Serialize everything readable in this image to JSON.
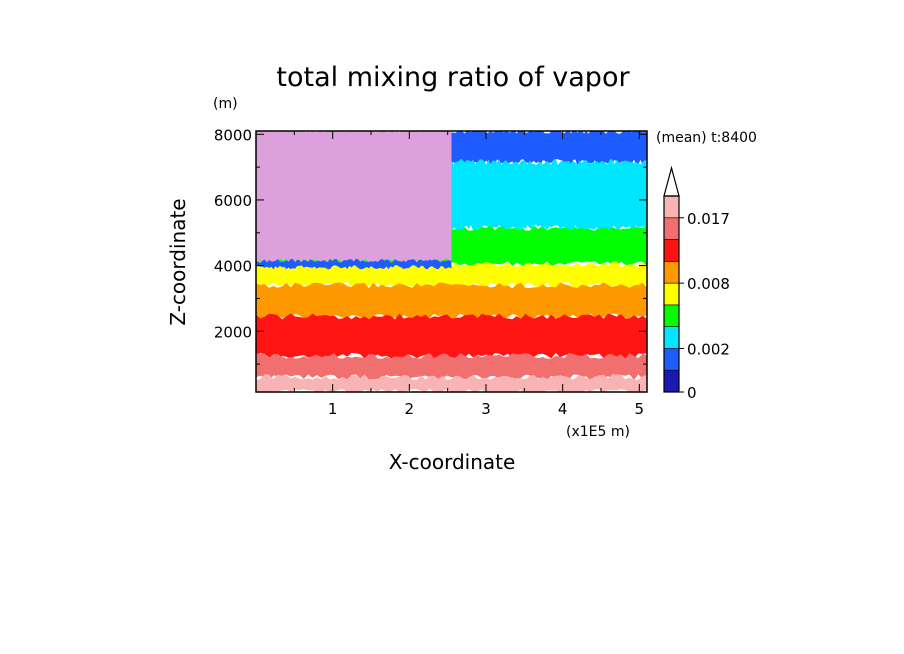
{
  "chart_data": {
    "type": "heatmap",
    "subtype": "filled-contour",
    "title": "total mixing ratio of vapor",
    "xlabel": "X-coordinate",
    "ylabel": "Z-coordinate",
    "x_units": "(x1E5 m)",
    "y_units": "(m)",
    "x_range": [
      0.0,
      5.1
    ],
    "y_range": [
      150,
      8100
    ],
    "x_ticks": [
      "1",
      "2",
      "3",
      "4",
      "5"
    ],
    "y_ticks": [
      "2000",
      "4000",
      "6000",
      "8000"
    ],
    "x_tick_values": [
      1,
      2,
      3,
      4,
      5
    ],
    "y_tick_values": [
      2000,
      4000,
      6000,
      8000
    ],
    "annotation": "(mean) t:8400",
    "colorbar": {
      "levels": [
        0,
        0.0005,
        0.002,
        0.004,
        0.006,
        0.008,
        0.01,
        0.013,
        0.017,
        0.022
      ],
      "colors": [
        "#1a1ab0",
        "#1e5cff",
        "#00e6ff",
        "#00ff00",
        "#ffff00",
        "#ff9900",
        "#ff1414",
        "#f07070",
        "#f8b4b4"
      ],
      "overflow_color": "#ffffff",
      "tick_labels": [
        "0",
        "0.002",
        "0.008",
        "0.017"
      ],
      "tick_values": [
        0,
        0.002,
        0.008,
        0.017
      ]
    },
    "regions": [
      {
        "name": "missing/masked (upper left)",
        "x": [
          0.0,
          2.55
        ],
        "z": [
          4150,
          8100
        ],
        "color": "#dca0dc"
      },
      {
        "name": "upper right band",
        "x": [
          2.55,
          5.1
        ],
        "z": [
          7150,
          8100
        ],
        "value_range": [
          0.0005,
          0.002
        ]
      },
      {
        "name": "upper right band",
        "x": [
          2.55,
          5.1
        ],
        "z": [
          5150,
          7150
        ],
        "value_range": [
          0.002,
          0.004
        ]
      }
    ],
    "bands": [
      {
        "z_bottom": 150,
        "z_top": 600,
        "value_range": [
          0.017,
          0.022
        ]
      },
      {
        "z_bottom": 600,
        "z_top": 1250,
        "value_range": [
          0.013,
          0.017
        ]
      },
      {
        "z_bottom": 1250,
        "z_top": 2450,
        "value_range": [
          0.01,
          0.013
        ]
      },
      {
        "z_bottom": 2450,
        "z_top": 3400,
        "value_range": [
          0.008,
          0.01
        ]
      },
      {
        "z_bottom": 3400,
        "z_top": 4050,
        "value_range": [
          0.006,
          0.008
        ]
      },
      {
        "z_bottom": 4050,
        "z_top": 5150,
        "value_range": [
          0.004,
          0.006
        ]
      }
    ]
  }
}
